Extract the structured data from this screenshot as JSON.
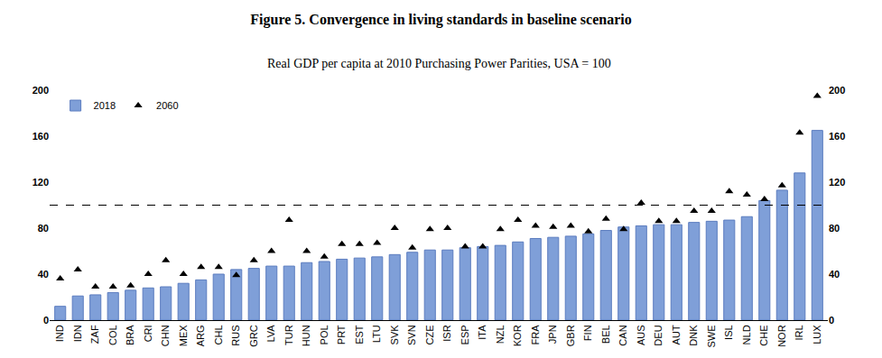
{
  "chart_data": {
    "type": "bar",
    "title": "Figure 5. Convergence in living standards in baseline scenario",
    "subtitle": "Real GDP per capita at 2010 Purchasing Power Parities, USA = 100",
    "categories": [
      "IND",
      "IDN",
      "ZAF",
      "COL",
      "BRA",
      "CRI",
      "CHN",
      "MEX",
      "ARG",
      "CHL",
      "RUS",
      "GRC",
      "LVA",
      "TUR",
      "HUN",
      "POL",
      "PRT",
      "EST",
      "LTU",
      "SVK",
      "SVN",
      "CZE",
      "ISR",
      "ESP",
      "ITA",
      "NZL",
      "KOR",
      "FRA",
      "JPN",
      "GBR",
      "FIN",
      "BEL",
      "CAN",
      "AUS",
      "DEU",
      "AUT",
      "DNK",
      "SWE",
      "ISL",
      "NLD",
      "CHE",
      "NOR",
      "IRL",
      "LUX"
    ],
    "series": [
      {
        "name": "2018",
        "type": "bar",
        "color": "#7f9fd8",
        "values": [
          12,
          21,
          22,
          24,
          26,
          28,
          29,
          32,
          35,
          40,
          44,
          45,
          47,
          47,
          50,
          51,
          53,
          54,
          55,
          57,
          59,
          61,
          61,
          63,
          64,
          65,
          68,
          71,
          72,
          73,
          75,
          78,
          81,
          82,
          83,
          83,
          85,
          86,
          87,
          90,
          104,
          113,
          128,
          165
        ]
      },
      {
        "name": "2060",
        "type": "scatter",
        "marker": "triangle-up",
        "color": "#000000",
        "values": [
          36,
          44,
          29,
          29,
          30,
          40,
          52,
          40,
          46,
          46,
          39,
          52,
          60,
          87,
          60,
          55,
          66,
          66,
          67,
          80,
          63,
          79,
          80,
          64,
          64,
          79,
          87,
          82,
          81,
          82,
          77,
          88,
          79,
          102,
          86,
          86,
          95,
          95,
          112,
          109,
          105,
          117,
          163,
          195
        ]
      }
    ],
    "reference_line": {
      "value": 100,
      "line_style": "dashed"
    },
    "ylim": [
      0,
      200
    ],
    "yticks": [
      0,
      40,
      80,
      120,
      160,
      200
    ],
    "y2lim": [
      0,
      200
    ],
    "y2ticks": [
      0,
      40,
      80,
      120,
      160,
      200
    ],
    "grid": false,
    "legend": "top-left"
  }
}
